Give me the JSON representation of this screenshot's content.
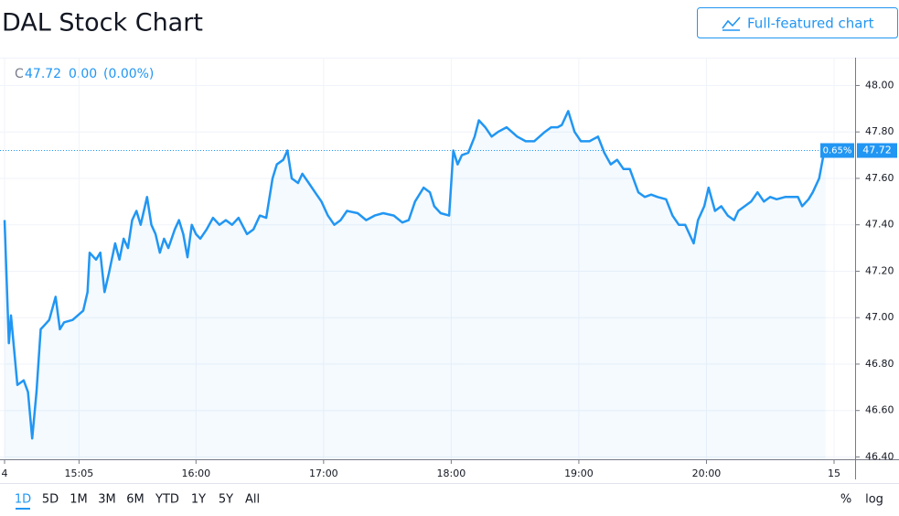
{
  "header": {
    "title": "DAL Stock Chart",
    "button": "Full-featured chart"
  },
  "chart_data": {
    "type": "line",
    "legend": {
      "prefix": "C",
      "close": 47.72,
      "change": {
        "value": 0,
        "label": "0.00"
      },
      "change_pct": {
        "value": 0,
        "label": "(0.00%)"
      }
    },
    "x": [
      "14:30",
      "14:32",
      "14:33",
      "14:36",
      "14:39",
      "14:41",
      "14:43",
      "14:45",
      "14:47",
      "14:49",
      "14:51",
      "14:54",
      "14:56",
      "14:58",
      "15:02",
      "15:07",
      "15:09",
      "15:10",
      "15:13",
      "15:15",
      "15:17",
      "15:19",
      "15:22",
      "15:24",
      "15:26",
      "15:28",
      "15:30",
      "15:32",
      "15:34",
      "15:37",
      "15:39",
      "15:41",
      "15:43",
      "15:45",
      "15:47",
      "15:50",
      "15:52",
      "15:54",
      "15:56",
      "15:58",
      "16:00",
      "16:02",
      "16:05",
      "16:08",
      "16:11",
      "16:14",
      "16:17",
      "16:20",
      "16:24",
      "16:27",
      "16:30",
      "16:33",
      "16:36",
      "16:38",
      "16:41",
      "16:43",
      "16:45",
      "16:48",
      "16:50",
      "16:53",
      "16:56",
      "16:59",
      "17:02",
      "17:05",
      "17:08",
      "17:11",
      "17:16",
      "17:20",
      "17:24",
      "17:28",
      "17:33",
      "17:37",
      "17:40",
      "17:43",
      "17:47",
      "17:50",
      "17:52",
      "17:55",
      "17:59",
      "18:01",
      "18:03",
      "18:05",
      "18:08",
      "18:11",
      "18:13",
      "18:16",
      "18:19",
      "18:22",
      "18:26",
      "18:31",
      "18:35",
      "18:39",
      "18:44",
      "18:47",
      "18:50",
      "18:52",
      "18:55",
      "18:58",
      "19:01",
      "19:05",
      "19:09",
      "19:12",
      "19:15",
      "19:18",
      "19:21",
      "19:24",
      "19:28",
      "19:31",
      "19:34",
      "19:37",
      "19:41",
      "19:44",
      "19:47",
      "19:50",
      "19:54",
      "19:56",
      "19:59",
      "20:01",
      "20:04",
      "20:07",
      "20:10",
      "20:13",
      "20:15",
      "20:18",
      "20:21",
      "20:24",
      "20:27",
      "20:30",
      "20:33",
      "20:37",
      "20:40",
      "20:43",
      "20:45",
      "20:48",
      "20:50",
      "20:53",
      "20:55",
      "20:56"
    ],
    "series": [
      {
        "name": "DAL",
        "color": "#2196f3",
        "values": [
          47.42,
          46.89,
          47.01,
          46.71,
          46.73,
          46.68,
          46.48,
          46.68,
          46.95,
          46.97,
          46.99,
          47.09,
          46.95,
          46.98,
          46.99,
          47.03,
          47.11,
          47.28,
          47.25,
          47.28,
          47.11,
          47.19,
          47.32,
          47.25,
          47.34,
          47.3,
          47.42,
          47.46,
          47.4,
          47.52,
          47.4,
          47.36,
          47.28,
          47.34,
          47.3,
          47.38,
          47.42,
          47.36,
          47.26,
          47.4,
          47.36,
          47.34,
          47.38,
          47.43,
          47.4,
          47.42,
          47.4,
          47.43,
          47.36,
          47.38,
          47.44,
          47.43,
          47.6,
          47.66,
          47.68,
          47.72,
          47.6,
          47.58,
          47.62,
          47.58,
          47.54,
          47.5,
          47.44,
          47.4,
          47.42,
          47.46,
          47.45,
          47.42,
          47.44,
          47.45,
          47.44,
          47.41,
          47.42,
          47.5,
          47.56,
          47.54,
          47.48,
          47.45,
          47.44,
          47.72,
          47.66,
          47.7,
          47.71,
          47.78,
          47.85,
          47.82,
          47.78,
          47.8,
          47.82,
          47.78,
          47.76,
          47.76,
          47.8,
          47.82,
          47.82,
          47.83,
          47.89,
          47.8,
          47.76,
          47.76,
          47.78,
          47.71,
          47.66,
          47.68,
          47.64,
          47.64,
          47.54,
          47.52,
          47.53,
          47.52,
          47.51,
          47.44,
          47.4,
          47.4,
          47.32,
          47.42,
          47.48,
          47.56,
          47.46,
          47.48,
          47.44,
          47.42,
          47.46,
          47.48,
          47.5,
          47.54,
          47.5,
          47.52,
          47.51,
          47.52,
          47.52,
          47.52,
          47.48,
          47.51,
          47.54,
          47.6,
          47.7,
          47.72
        ]
      }
    ],
    "last_price": 47.72,
    "last_change": {
      "value": 0.65,
      "label": "0.65%"
    },
    "xlim": [
      "14:30",
      "21:00"
    ],
    "xticks": [
      {
        "value": "14:30",
        "label": "4"
      },
      "15:05",
      "16:00",
      "17:00",
      "18:00",
      "19:00",
      "20:00",
      {
        "value": "21:00",
        "label": "15"
      }
    ],
    "ylim": [
      46.39,
      48.12
    ],
    "yticks": [
      {
        "value": 46.4,
        "label": "46.40"
      },
      {
        "value": 46.6,
        "label": "46.60"
      },
      {
        "value": 46.8,
        "label": "46.80"
      },
      {
        "value": 47,
        "label": "47.00"
      },
      {
        "value": 47.2,
        "label": "47.20"
      },
      {
        "value": 47.4,
        "label": "47.40"
      },
      {
        "value": 47.6,
        "label": "47.60"
      },
      {
        "value": 47.8,
        "label": "47.80"
      },
      {
        "value": 48,
        "label": "48.00"
      }
    ],
    "grid": true
  },
  "toolbar": {
    "ranges": [
      "1D",
      "5D",
      "1M",
      "3M",
      "6M",
      "YTD",
      "1Y",
      "5Y",
      "All"
    ],
    "selected": 0,
    "percent": "%",
    "log": "log"
  }
}
